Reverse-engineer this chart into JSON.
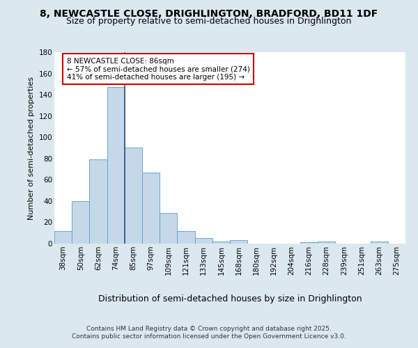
{
  "title1": "8, NEWCASTLE CLOSE, DRIGHLINGTON, BRADFORD, BD11 1DF",
  "title2": "Size of property relative to semi-detached houses in Drighlington",
  "xlabel": "Distribution of semi-detached houses by size in Drighlington",
  "ylabel": "Number of semi-detached properties",
  "footer": "Contains HM Land Registry data © Crown copyright and database right 2025.\nContains public sector information licensed under the Open Government Licence v3.0.",
  "bar_labels": [
    "38sqm",
    "50sqm",
    "62sqm",
    "74sqm",
    "85sqm",
    "97sqm",
    "109sqm",
    "121sqm",
    "133sqm",
    "145sqm",
    "168sqm",
    "180sqm",
    "192sqm",
    "204sqm",
    "216sqm",
    "228sqm",
    "239sqm",
    "251sqm",
    "263sqm",
    "275sqm"
  ],
  "bar_values": [
    12,
    40,
    79,
    147,
    90,
    67,
    29,
    12,
    5,
    2,
    3,
    0,
    0,
    0,
    1,
    2,
    0,
    0,
    2,
    0
  ],
  "bar_color": "#c5d8e8",
  "bar_edge_color": "#5b9bd5",
  "vline_x_index": 4,
  "vline_color": "#2f4f8f",
  "annotation_text": "8 NEWCASTLE CLOSE: 86sqm\n← 57% of semi-detached houses are smaller (274)\n41% of semi-detached houses are larger (195) →",
  "annotation_box_color": "#ffffff",
  "annotation_box_edge": "#cc0000",
  "ylim": [
    0,
    180
  ],
  "yticks": [
    0,
    20,
    40,
    60,
    80,
    100,
    120,
    140,
    160,
    180
  ],
  "background_color": "#dce8f0",
  "plot_background": "#ffffff",
  "grid_color": "#ffffff",
  "title1_fontsize": 10,
  "title2_fontsize": 9,
  "xlabel_fontsize": 9,
  "ylabel_fontsize": 8,
  "tick_fontsize": 7.5,
  "footer_fontsize": 6.5,
  "annot_fontsize": 7.5
}
